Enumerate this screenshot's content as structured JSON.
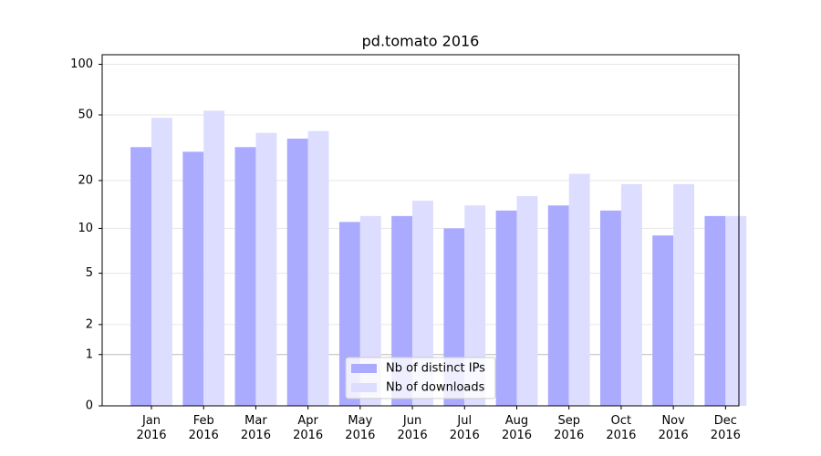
{
  "chart_data": {
    "type": "bar",
    "title": "pd.tomato 2016",
    "yscale": "log1p",
    "categories": [
      "Jan 2016",
      "Feb 2016",
      "Mar 2016",
      "Apr 2016",
      "May 2016",
      "Jun 2016",
      "Jul 2016",
      "Aug 2016",
      "Sep 2016",
      "Oct 2016",
      "Nov 2016",
      "Dec 2016"
    ],
    "series": [
      {
        "name": "Nb of distinct IPs",
        "color": "#aaaaff",
        "values": [
          32,
          30,
          32,
          36,
          11,
          12,
          10,
          13,
          14,
          13,
          9,
          12
        ]
      },
      {
        "name": "Nb of downloads",
        "color": "#ddddff",
        "values": [
          48,
          53,
          39,
          40,
          12,
          15,
          14,
          16,
          22,
          19,
          19,
          12
        ]
      }
    ],
    "ylim": [
      0,
      114
    ],
    "yticks": [
      0,
      1,
      2,
      5,
      10,
      20,
      50,
      100
    ],
    "grid": true,
    "legend": "lower center"
  }
}
